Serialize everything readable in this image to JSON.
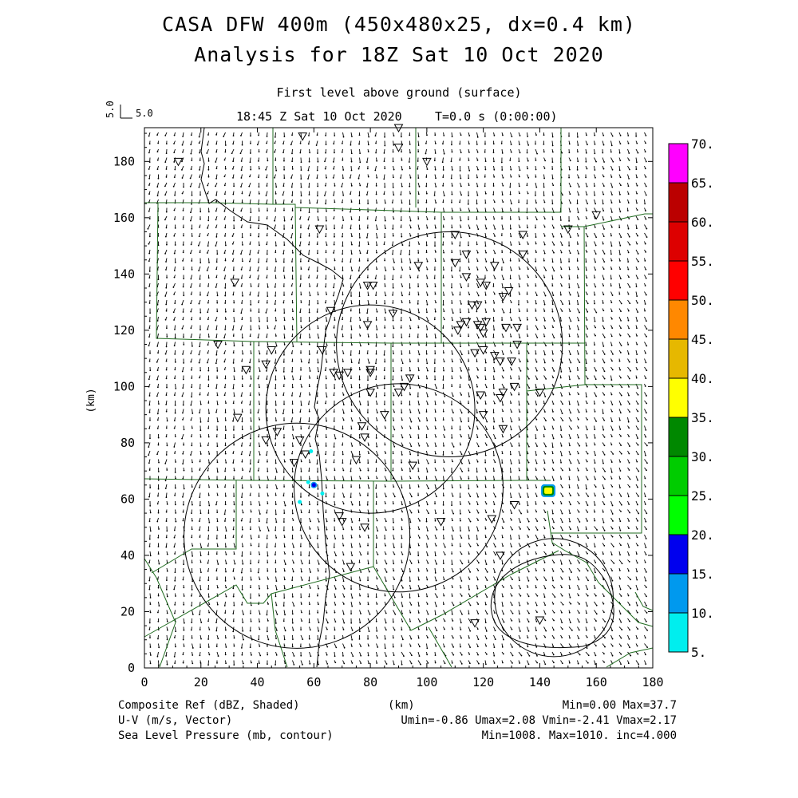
{
  "header": {
    "title_line1": "CASA DFW 400m (450x480x25, dx=0.4 km)",
    "title_line2": "Analysis for 18Z Sat 10 Oct 2020",
    "level": "First level above ground (surface)",
    "valid_time": "18:45 Z Sat 10 Oct 2020",
    "forecast_time": "T=0.0 s (0:00:00)",
    "vector_scale_value": "5.0",
    "vector_scale_label": "5.0"
  },
  "footer": {
    "field1_name": "Composite Ref (dBZ, Shaded)",
    "field1_stats": "Min=0.00 Max=37.7",
    "field2_name": "U-V (m/s, Vector)",
    "field2_stats": "Umin=-0.86 Umax=2.08 Vmin=-2.41 Vmax=2.17",
    "field3_name": "Sea Level Pressure (mb, contour)",
    "field3_stats": "Min=1008. Max=1010. inc=4.000",
    "xaxis_unit": "(km)"
  },
  "axes": {
    "xlabel": "(km)",
    "ylabel": "(km)",
    "xlim": [
      0,
      180
    ],
    "ylim": [
      0,
      192
    ],
    "xticks": [
      "0",
      "20",
      "40",
      "60",
      "80",
      "100",
      "120",
      "140",
      "160",
      "180"
    ],
    "yticks": [
      "0",
      "20",
      "40",
      "60",
      "80",
      "100",
      "120",
      "140",
      "160",
      "180"
    ]
  },
  "colorbar": {
    "labels": [
      "5.",
      "10.",
      "15.",
      "20.",
      "25.",
      "30.",
      "35.",
      "40.",
      "45.",
      "50.",
      "55.",
      "60.",
      "65.",
      "70."
    ],
    "colors": [
      "#00eeee",
      "#0099ee",
      "#0000ee",
      "#00ff00",
      "#00cc00",
      "#008800",
      "#ffff00",
      "#e6b800",
      "#ff8800",
      "#ff0000",
      "#dd0000",
      "#bb0000",
      "#ff00ff"
    ]
  },
  "map": {
    "range_rings_km": [
      {
        "cx": 108,
        "cy": 115,
        "r": 40
      },
      {
        "cx": 80,
        "cy": 92,
        "r": 37
      },
      {
        "cx": 90,
        "cy": 64,
        "r": 37
      },
      {
        "cx": 54,
        "cy": 47,
        "r": 40
      },
      {
        "cx": 145,
        "cy": 25,
        "r": 21
      }
    ],
    "stations_km": [
      [
        56,
        189
      ],
      [
        90,
        192
      ],
      [
        90,
        185
      ],
      [
        100,
        180
      ],
      [
        12,
        180
      ],
      [
        62,
        156
      ],
      [
        110,
        154
      ],
      [
        134,
        154
      ],
      [
        150,
        156
      ],
      [
        160,
        161
      ],
      [
        134,
        147
      ],
      [
        114,
        147
      ],
      [
        110,
        144
      ],
      [
        97,
        143
      ],
      [
        124,
        143
      ],
      [
        114,
        139
      ],
      [
        32,
        137
      ],
      [
        79,
        136
      ],
      [
        81,
        136
      ],
      [
        119,
        137
      ],
      [
        121,
        136
      ],
      [
        129,
        134
      ],
      [
        127,
        132
      ],
      [
        66,
        127
      ],
      [
        88,
        126
      ],
      [
        116,
        129
      ],
      [
        118,
        129
      ],
      [
        79,
        122
      ],
      [
        112,
        122
      ],
      [
        114,
        123
      ],
      [
        118,
        122
      ],
      [
        121,
        123
      ],
      [
        119,
        121
      ],
      [
        128,
        121
      ],
      [
        132,
        121
      ],
      [
        120,
        119
      ],
      [
        111,
        120
      ],
      [
        26,
        115
      ],
      [
        132,
        115
      ],
      [
        45,
        113
      ],
      [
        63,
        113
      ],
      [
        117,
        112
      ],
      [
        120,
        113
      ],
      [
        124,
        111
      ],
      [
        126,
        109
      ],
      [
        130,
        109
      ],
      [
        43,
        108
      ],
      [
        36,
        106
      ],
      [
        80,
        106
      ],
      [
        80,
        105
      ],
      [
        67,
        105
      ],
      [
        69,
        104
      ],
      [
        72,
        105
      ],
      [
        94,
        103
      ],
      [
        131,
        100
      ],
      [
        127,
        98
      ],
      [
        92,
        100
      ],
      [
        90,
        98
      ],
      [
        80,
        98
      ],
      [
        119,
        97
      ],
      [
        126,
        96
      ],
      [
        140,
        98
      ],
      [
        33,
        89
      ],
      [
        85,
        90
      ],
      [
        120,
        90
      ],
      [
        127,
        85
      ],
      [
        47,
        84
      ],
      [
        55,
        81
      ],
      [
        43,
        81
      ],
      [
        78,
        82
      ],
      [
        77,
        86
      ],
      [
        53,
        73
      ],
      [
        57,
        76
      ],
      [
        75,
        74
      ],
      [
        95,
        72
      ],
      [
        123,
        53
      ],
      [
        131,
        58
      ],
      [
        69,
        54
      ],
      [
        70,
        52
      ],
      [
        78,
        50
      ],
      [
        105,
        52
      ],
      [
        126,
        40
      ],
      [
        73,
        36
      ],
      [
        117,
        16
      ],
      [
        140,
        17
      ]
    ],
    "reflectivity_cells_km": [
      {
        "x": 143,
        "y": 63,
        "dbz": 37.7
      },
      {
        "x": 60,
        "y": 65,
        "dbz": 15
      },
      {
        "x": 58,
        "y": 66,
        "dbz": 8
      },
      {
        "x": 59,
        "y": 77,
        "dbz": 6
      },
      {
        "x": 55,
        "y": 59,
        "dbz": 6
      },
      {
        "x": 63,
        "y": 62,
        "dbz": 6
      }
    ]
  }
}
